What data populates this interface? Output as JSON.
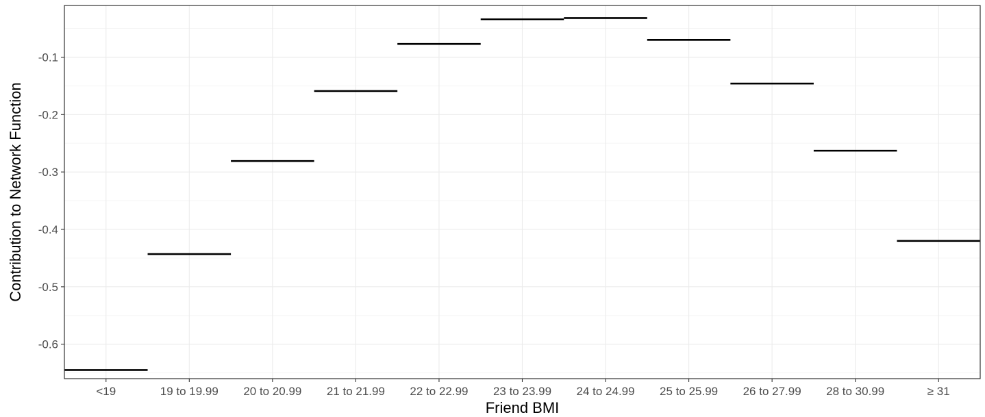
{
  "chart_data": {
    "type": "step",
    "title": "",
    "xlabel": "Friend BMI",
    "ylabel": "Contribution to Network Function",
    "categories": [
      "<19",
      "19 to 19.99",
      "20 to 20.99",
      "21 to 21.99",
      "22 to 22.99",
      "23 to 23.99",
      "24 to 24.99",
      "25 to 25.99",
      "26 to 27.99",
      "28 to 30.99",
      "≥ 31"
    ],
    "values": [
      -0.645,
      -0.443,
      -0.281,
      -0.159,
      -0.077,
      -0.034,
      -0.032,
      -0.07,
      -0.146,
      -0.263,
      -0.42
    ],
    "ylim": [
      -0.66,
      -0.01
    ],
    "yticks": [
      -0.6,
      -0.5,
      -0.4,
      -0.3,
      -0.2,
      -0.1
    ],
    "ytick_labels": [
      "-0.6",
      "-0.5",
      "-0.4",
      "-0.3",
      "-0.2",
      "-0.1"
    ],
    "grid": true,
    "legend": "none",
    "colors": {
      "segment": "#000000",
      "grid_major": "#ebebeb",
      "grid_minor": "#f5f5f5",
      "panel_border": "#333333",
      "tick_text": "#4d4d4d"
    }
  }
}
